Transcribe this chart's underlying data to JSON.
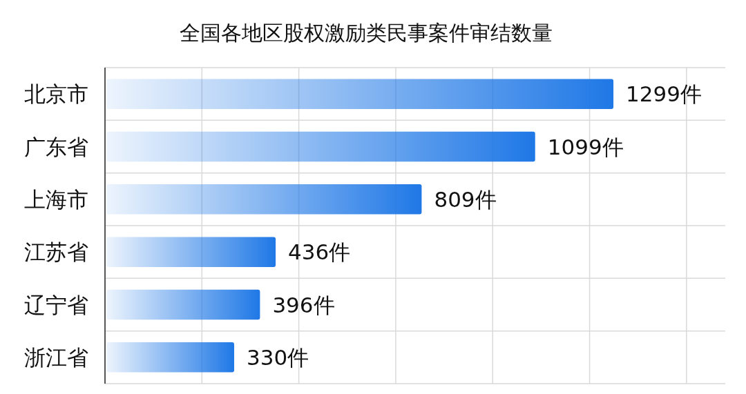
{
  "chart_data": {
    "type": "bar",
    "orientation": "horizontal",
    "title": "全国各地区股权激励类民事案件审结数量",
    "categories": [
      "北京市",
      "广东省",
      "上海市",
      "江苏省",
      "辽宁省",
      "浙江省"
    ],
    "values": [
      1299,
      1099,
      809,
      436,
      396,
      330
    ],
    "value_labels": [
      "1299件",
      "1099件",
      "809件",
      "436件",
      "396件",
      "330件"
    ],
    "color": "#1f78e6",
    "grid": true
  }
}
